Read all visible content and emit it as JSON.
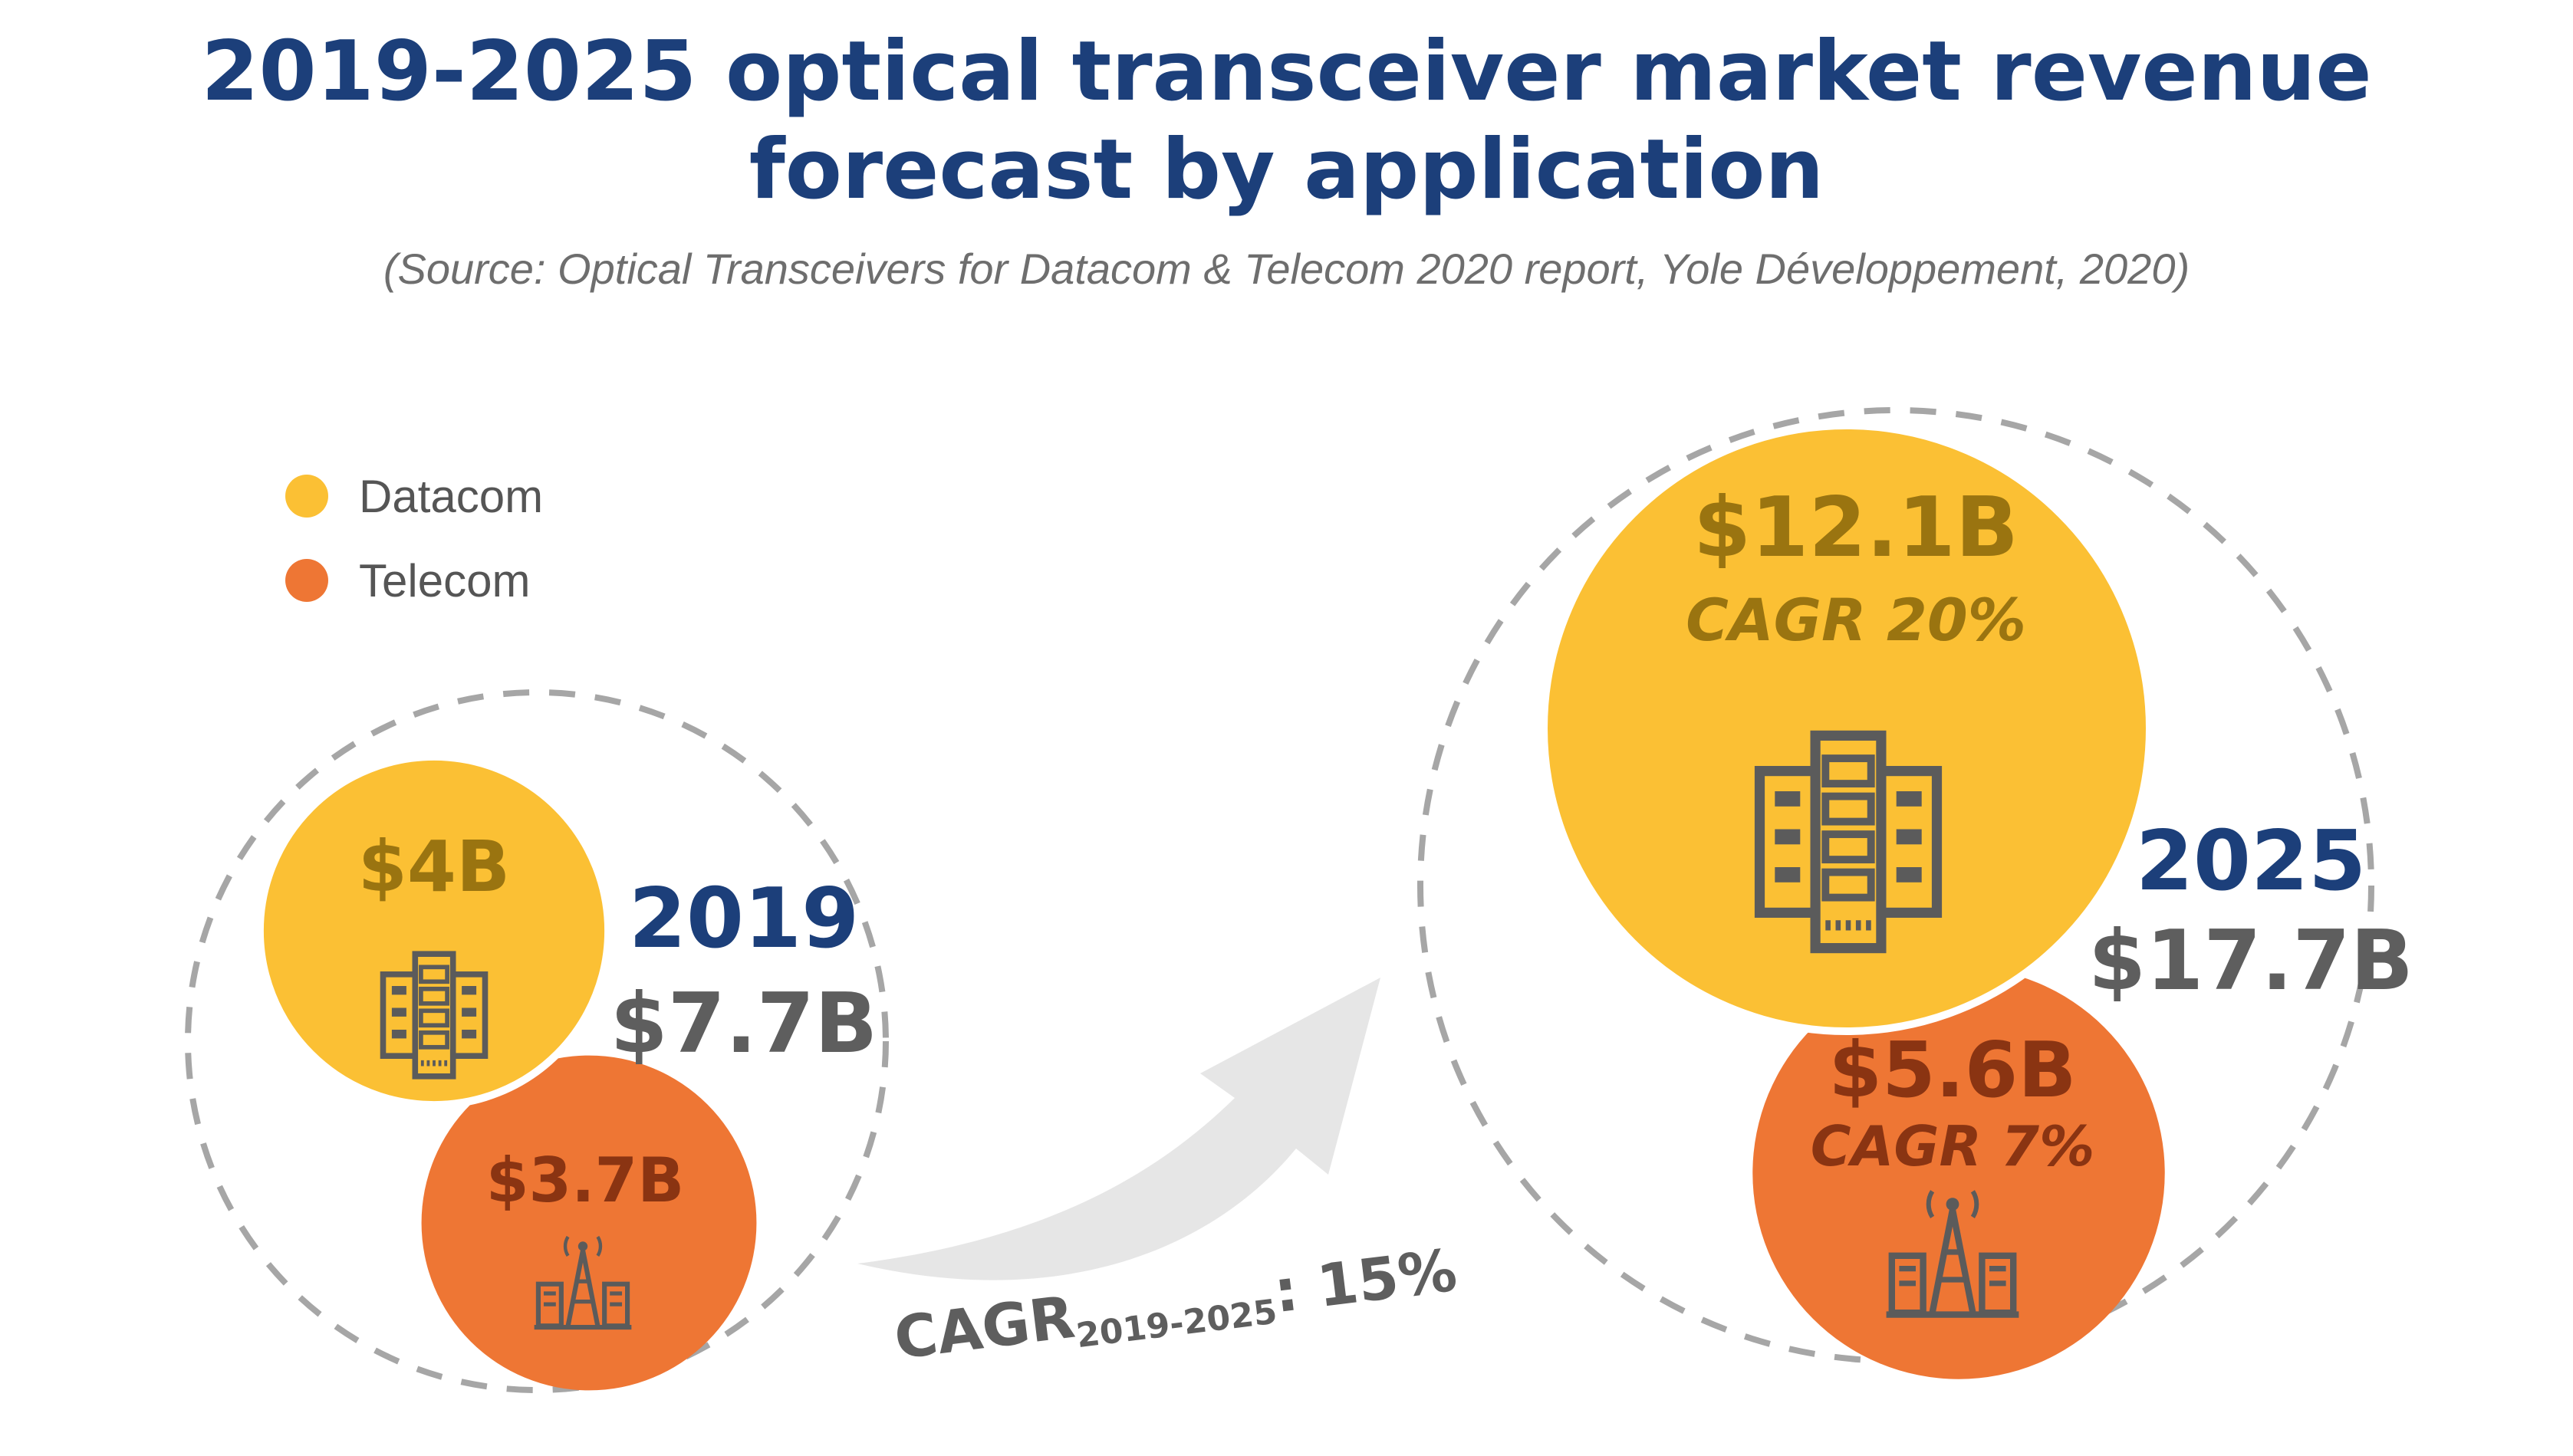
{
  "chart_data": {
    "type": "bubble",
    "title_line1": "2019-2025 optical transceiver market revenue",
    "title_line2": "forecast by application",
    "subtitle": "(Source: Optical Transceivers for Datacom & Telecom 2020 report, Yole Développement, 2020)",
    "legend": [
      {
        "name": "Datacom",
        "color": "#fbc034"
      },
      {
        "name": "Telecom",
        "color": "#ee7634"
      }
    ],
    "years": [
      {
        "year": "2019",
        "total": "$7.7B",
        "total_value": 7.7,
        "segments": [
          {
            "name": "Datacom",
            "label": "$4B",
            "value": 4.0,
            "cagr": ""
          },
          {
            "name": "Telecom",
            "label": "$3.7B",
            "value": 3.7,
            "cagr": ""
          }
        ]
      },
      {
        "year": "2025",
        "total": "$17.7B",
        "total_value": 17.7,
        "segments": [
          {
            "name": "Datacom",
            "label": "$12.1B",
            "value": 12.1,
            "cagr": "CAGR 20%"
          },
          {
            "name": "Telecom",
            "label": "$5.6B",
            "value": 5.6,
            "cagr": "CAGR 7%"
          }
        ]
      }
    ],
    "overall_cagr": {
      "prefix": "CAGR",
      "subscript": "2019-2025",
      "suffix": ": 15%"
    }
  },
  "colors": {
    "title": "#1c3f7a",
    "datacom": "#fbc034",
    "telecom": "#ee7634",
    "datacom_text": "#9a7410",
    "telecom_text": "#8a3412",
    "total_text": "#5e5e5e",
    "dashed": "#a6a6a6",
    "arrow": "#e6e6e6"
  },
  "icons": {
    "datacom": "server-rack-icon",
    "telecom": "cell-tower-city-icon"
  }
}
